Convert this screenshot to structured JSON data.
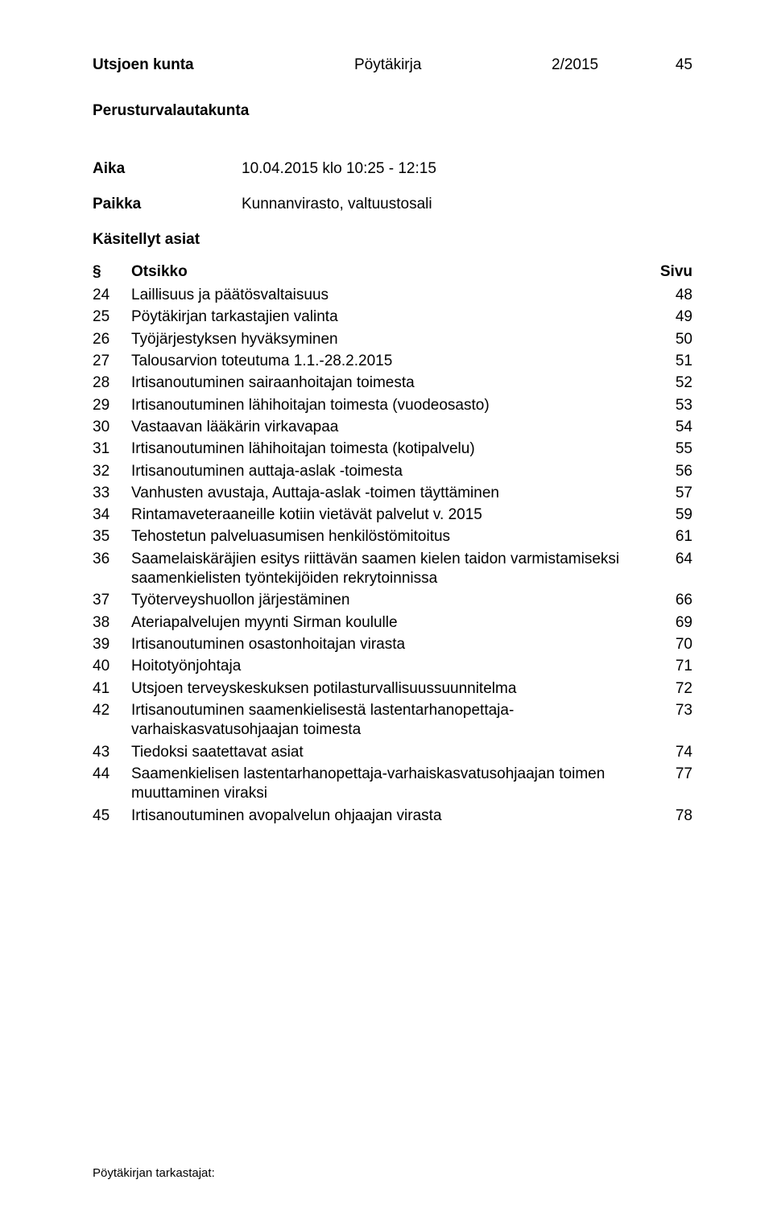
{
  "header": {
    "org": "Utsjoen kunta",
    "doctype": "Pöytäkirja",
    "docnum": "2/2015",
    "pagenum": "45"
  },
  "board": "Perusturvalautakunta",
  "meta": {
    "time_label": "Aika",
    "time_value": "10.04.2015 klo 10:25 - 12:15",
    "place_label": "Paikka",
    "place_value": "Kunnanvirasto, valtuustosali"
  },
  "section_label": "Käsitellyt asiat",
  "toc_head": {
    "num": "§",
    "title": "Otsikko",
    "page": "Sivu"
  },
  "toc": [
    {
      "num": "24",
      "title": "Laillisuus ja päätösvaltaisuus",
      "page": "48"
    },
    {
      "num": "25",
      "title": "Pöytäkirjan tarkastajien valinta",
      "page": "49"
    },
    {
      "num": "26",
      "title": "Työjärjestyksen hyväksyminen",
      "page": "50"
    },
    {
      "num": "27",
      "title": "Talousarvion toteutuma 1.1.-28.2.2015",
      "page": "51"
    },
    {
      "num": "28",
      "title": "Irtisanoutuminen sairaanhoitajan toimesta",
      "page": "52"
    },
    {
      "num": "29",
      "title": "Irtisanoutuminen lähihoitajan toimesta (vuodeosasto)",
      "page": "53"
    },
    {
      "num": "30",
      "title": "Vastaavan lääkärin virkavapaa",
      "page": "54"
    },
    {
      "num": "31",
      "title": "Irtisanoutuminen lähihoitajan toimesta (kotipalvelu)",
      "page": "55"
    },
    {
      "num": "32",
      "title": "Irtisanoutuminen auttaja-aslak -toimesta",
      "page": "56"
    },
    {
      "num": "33",
      "title": "Vanhusten avustaja, Auttaja-aslak -toimen täyttäminen",
      "page": "57"
    },
    {
      "num": "34",
      "title": "Rintamaveteraaneille kotiin vietävät palvelut v. 2015",
      "page": "59"
    },
    {
      "num": "35",
      "title": "Tehostetun palveluasumisen henkilöstömitoitus",
      "page": "61"
    },
    {
      "num": "36",
      "title": "Saamelaiskäräjien esitys riittävän saamen kielen taidon varmistamiseksi saamenkielisten työntekijöiden rekrytoinnissa",
      "page": "64"
    },
    {
      "num": "37",
      "title": "Työterveyshuollon järjestäminen",
      "page": "66"
    },
    {
      "num": "38",
      "title": "Ateriapalvelujen myynti Sirman koululle",
      "page": "69"
    },
    {
      "num": "39",
      "title": "Irtisanoutuminen osastonhoitajan virasta",
      "page": "70"
    },
    {
      "num": "40",
      "title": "Hoitotyönjohtaja",
      "page": "71"
    },
    {
      "num": "41",
      "title": "Utsjoen terveyskeskuksen potilasturvallisuussuunnitelma",
      "page": "72"
    },
    {
      "num": "42",
      "title": "Irtisanoutuminen saamenkielisestä lastentarhanopettaja-varhaiskasvatusohjaajan toimesta",
      "page": "73"
    },
    {
      "num": "43",
      "title": "Tiedoksi saatettavat asiat",
      "page": "74"
    },
    {
      "num": "44",
      "title": "Saamenkielisen lastentarhanopettaja-varhaiskasvatusohjaajan toimen muuttaminen viraksi",
      "page": "77"
    },
    {
      "num": "45",
      "title": "Irtisanoutuminen avopalvelun ohjaajan virasta",
      "page": "78"
    }
  ],
  "footer": "Pöytäkirjan tarkastajat:"
}
